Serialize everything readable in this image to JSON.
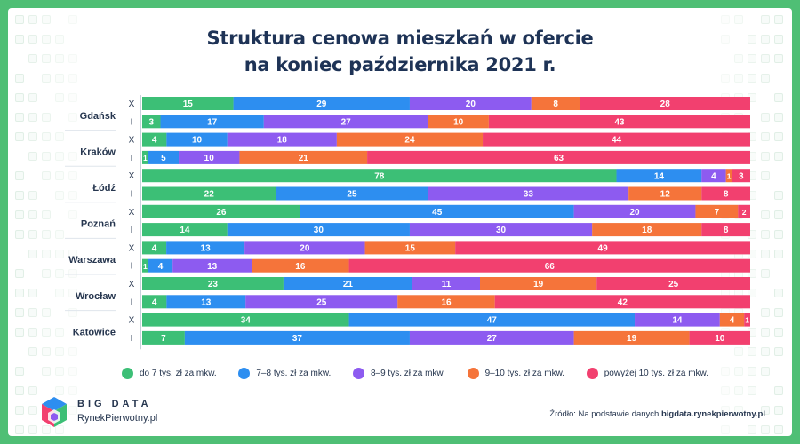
{
  "title_line1": "Struktura cenowa mieszkań w ofercie",
  "title_line2": "na koniec października 2021 r.",
  "source_prefix": "Źródło: Na podstawie danych ",
  "source_link": "bigdata.rynekpierwotny.pl",
  "logo": {
    "top": "BIG DATA",
    "bottom": "RynekPierwotny.pl"
  },
  "colors": {
    "do 7 tys. zł za mkw.": "#3cbf76",
    "7–8 tys. zł za mkw.": "#2d8ef0",
    "8–9 tys. zł za mkw.": "#8d5bf0",
    "9–10 tys. zł za mkw.": "#f5743a",
    "powyżej 10 tys. zł za mkw.": "#f2406f"
  },
  "chart_data": {
    "type": "bar",
    "orientation": "horizontal",
    "stacked": true,
    "unit": "%",
    "cities": [
      "Gdańsk",
      "Kraków",
      "Łódź",
      "Poznań",
      "Warszawa",
      "Wrocław",
      "Katowice"
    ],
    "months": [
      "X",
      "I"
    ],
    "categories": [
      "do 7 tys. zł za mkw.",
      "7–8 tys. zł za mkw.",
      "8–9 tys. zł za mkw.",
      "9–10 tys. zł za mkw.",
      "powyżej 10 tys. zł za mkw."
    ],
    "rows": [
      {
        "city": "Gdańsk",
        "month": "X",
        "values": [
          15,
          29,
          20,
          8,
          28
        ]
      },
      {
        "city": "Gdańsk",
        "month": "I",
        "values": [
          3,
          17,
          27,
          10,
          43
        ]
      },
      {
        "city": "Kraków",
        "month": "X",
        "values": [
          4,
          10,
          18,
          24,
          44
        ]
      },
      {
        "city": "Kraków",
        "month": "I",
        "values": [
          1,
          5,
          10,
          21,
          63
        ]
      },
      {
        "city": "Łódź",
        "month": "X",
        "values": [
          78,
          14,
          4,
          1,
          3
        ]
      },
      {
        "city": "Łódź",
        "month": "I",
        "values": [
          22,
          25,
          33,
          12,
          8
        ]
      },
      {
        "city": "Poznań",
        "month": "X",
        "values": [
          26,
          45,
          20,
          7,
          2
        ]
      },
      {
        "city": "Poznań",
        "month": "I",
        "values": [
          14,
          30,
          30,
          18,
          8
        ]
      },
      {
        "city": "Warszawa",
        "month": "X",
        "values": [
          4,
          13,
          20,
          15,
          49
        ]
      },
      {
        "city": "Warszawa",
        "month": "I",
        "values": [
          1,
          4,
          13,
          16,
          66
        ]
      },
      {
        "city": "Wrocław",
        "month": "X",
        "values": [
          23,
          21,
          11,
          19,
          25
        ]
      },
      {
        "city": "Wrocław",
        "month": "I",
        "values": [
          4,
          13,
          25,
          16,
          42
        ]
      },
      {
        "city": "Katowice",
        "month": "X",
        "values": [
          34,
          47,
          14,
          4,
          1
        ]
      },
      {
        "city": "Katowice",
        "month": "I",
        "values": [
          7,
          37,
          27,
          19,
          10
        ]
      }
    ]
  }
}
